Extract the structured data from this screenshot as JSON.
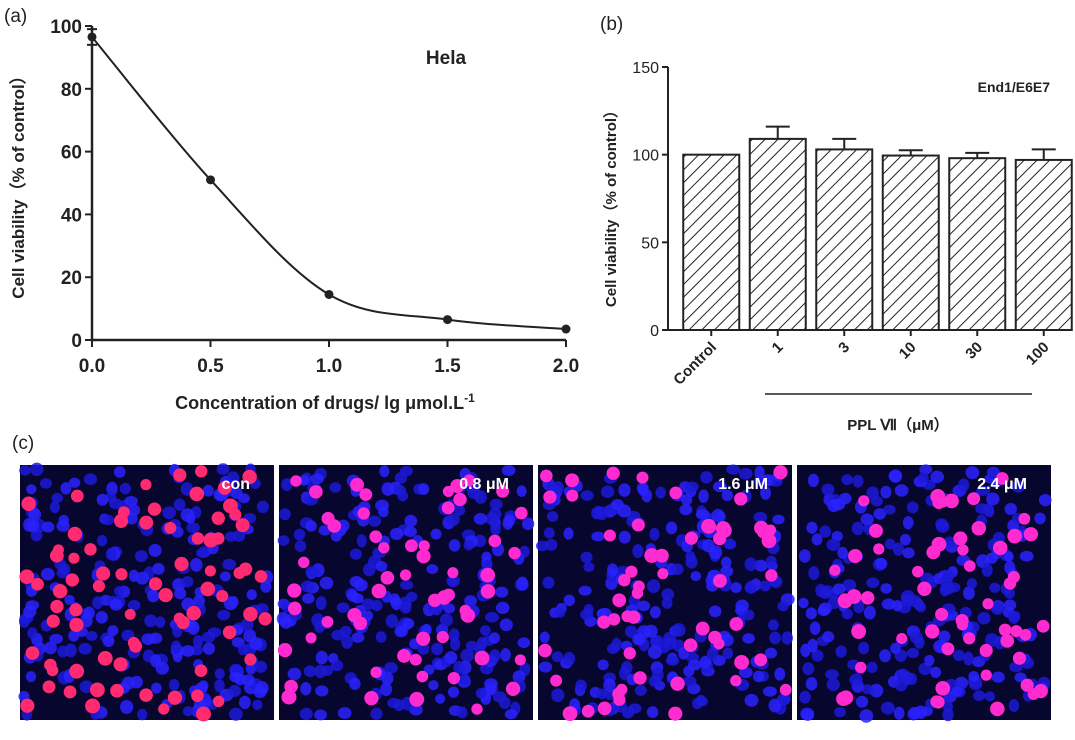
{
  "chart_data": [
    {
      "type": "line",
      "panel_label": "(a)",
      "annotation": "Hela",
      "ylabel": "Cell viability（% of control）",
      "xlabel": "Concentration of drugs/ lg μmol.L",
      "xlabel_superscript": "-1",
      "x": [
        0,
        0.5,
        1.0,
        1.5,
        2.0
      ],
      "series": [
        {
          "color": "#222222",
          "values": [
            96.5,
            51,
            14.5,
            6.5,
            3.5
          ],
          "errors": [
            2.5,
            0,
            0,
            0,
            0
          ]
        }
      ],
      "xlim": [
        0,
        2
      ],
      "ylim": [
        0,
        100
      ],
      "xticks": [
        {
          "value": 0,
          "label": "0.0"
        },
        {
          "value": 0.5,
          "label": "0.5"
        },
        {
          "value": 1,
          "label": "1.0"
        },
        {
          "value": 1.5,
          "label": "1.5"
        },
        {
          "value": 2,
          "label": "2.0"
        }
      ],
      "yticks": [
        0,
        20,
        40,
        60,
        80,
        100
      ]
    },
    {
      "type": "bar",
      "panel_label": "(b)",
      "annotation": "End1/E6E7",
      "ylabel": "Cell viability（% of control）",
      "group_label": "PPL Ⅶ（μM）",
      "categories": [
        "Control",
        "1",
        "3",
        "10",
        "30",
        "100"
      ],
      "values": [
        100,
        109,
        103,
        99.5,
        98,
        97
      ],
      "errors": [
        0,
        7,
        6,
        3,
        3,
        6
      ],
      "color": "#222222",
      "ylim": [
        0,
        150
      ],
      "yticks": [
        0,
        50,
        100,
        150
      ]
    }
  ],
  "images": {
    "panel_label": "(c)",
    "labels": [
      "con",
      "0.8 μM",
      "1.6 μM",
      "2.4 μM"
    ]
  }
}
